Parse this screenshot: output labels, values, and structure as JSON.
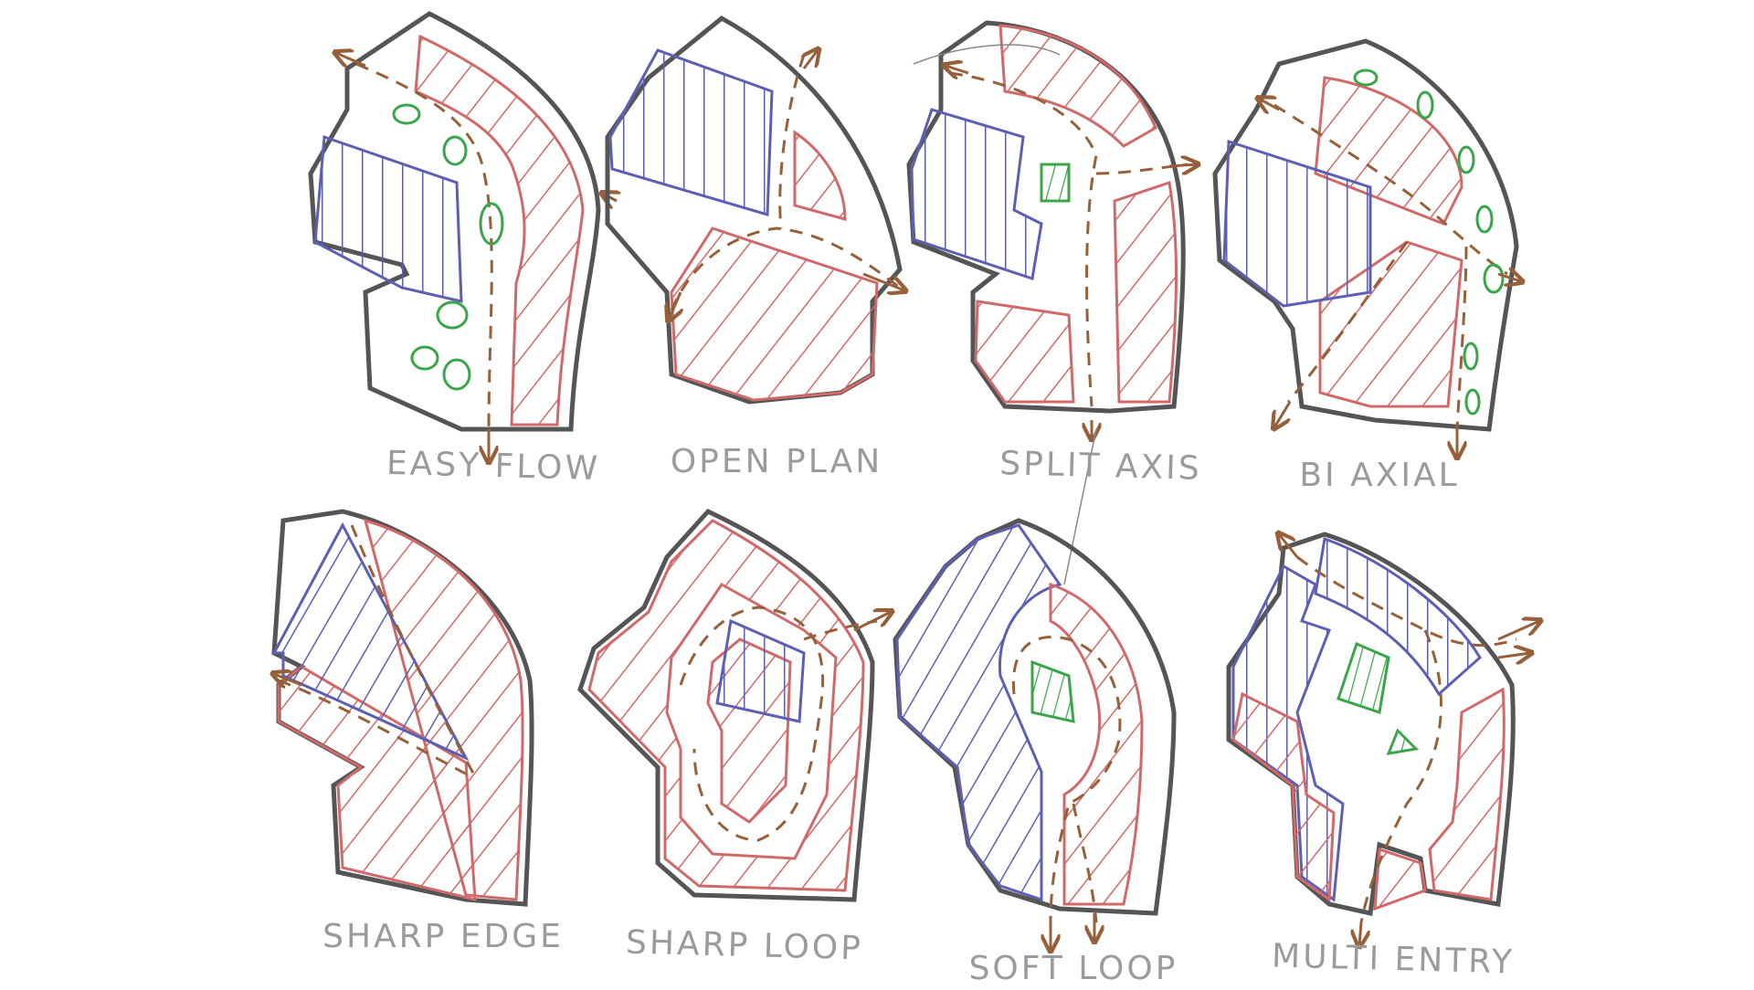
{
  "colors": {
    "outline": "#555555",
    "red": "#d06a6a",
    "blue": "#5d5fb3",
    "green": "#3aa54a",
    "arrow": "#96613a",
    "caption": "#9b9b9b"
  },
  "diagrams": [
    {
      "id": "easy-flow",
      "caption": "EASY FLOW"
    },
    {
      "id": "open-plan",
      "caption": "OPEN PLAN"
    },
    {
      "id": "split-axis",
      "caption": "SPLIT AXIS"
    },
    {
      "id": "bi-axial",
      "caption": "BI AXIAL"
    },
    {
      "id": "sharp-edge",
      "caption": "SHARP EDGE"
    },
    {
      "id": "sharp-loop",
      "caption": "SHARP LOOP"
    },
    {
      "id": "soft-loop",
      "caption": "SOFT LOOP"
    },
    {
      "id": "multi-entry",
      "caption": "MULTI ENTRY"
    }
  ]
}
